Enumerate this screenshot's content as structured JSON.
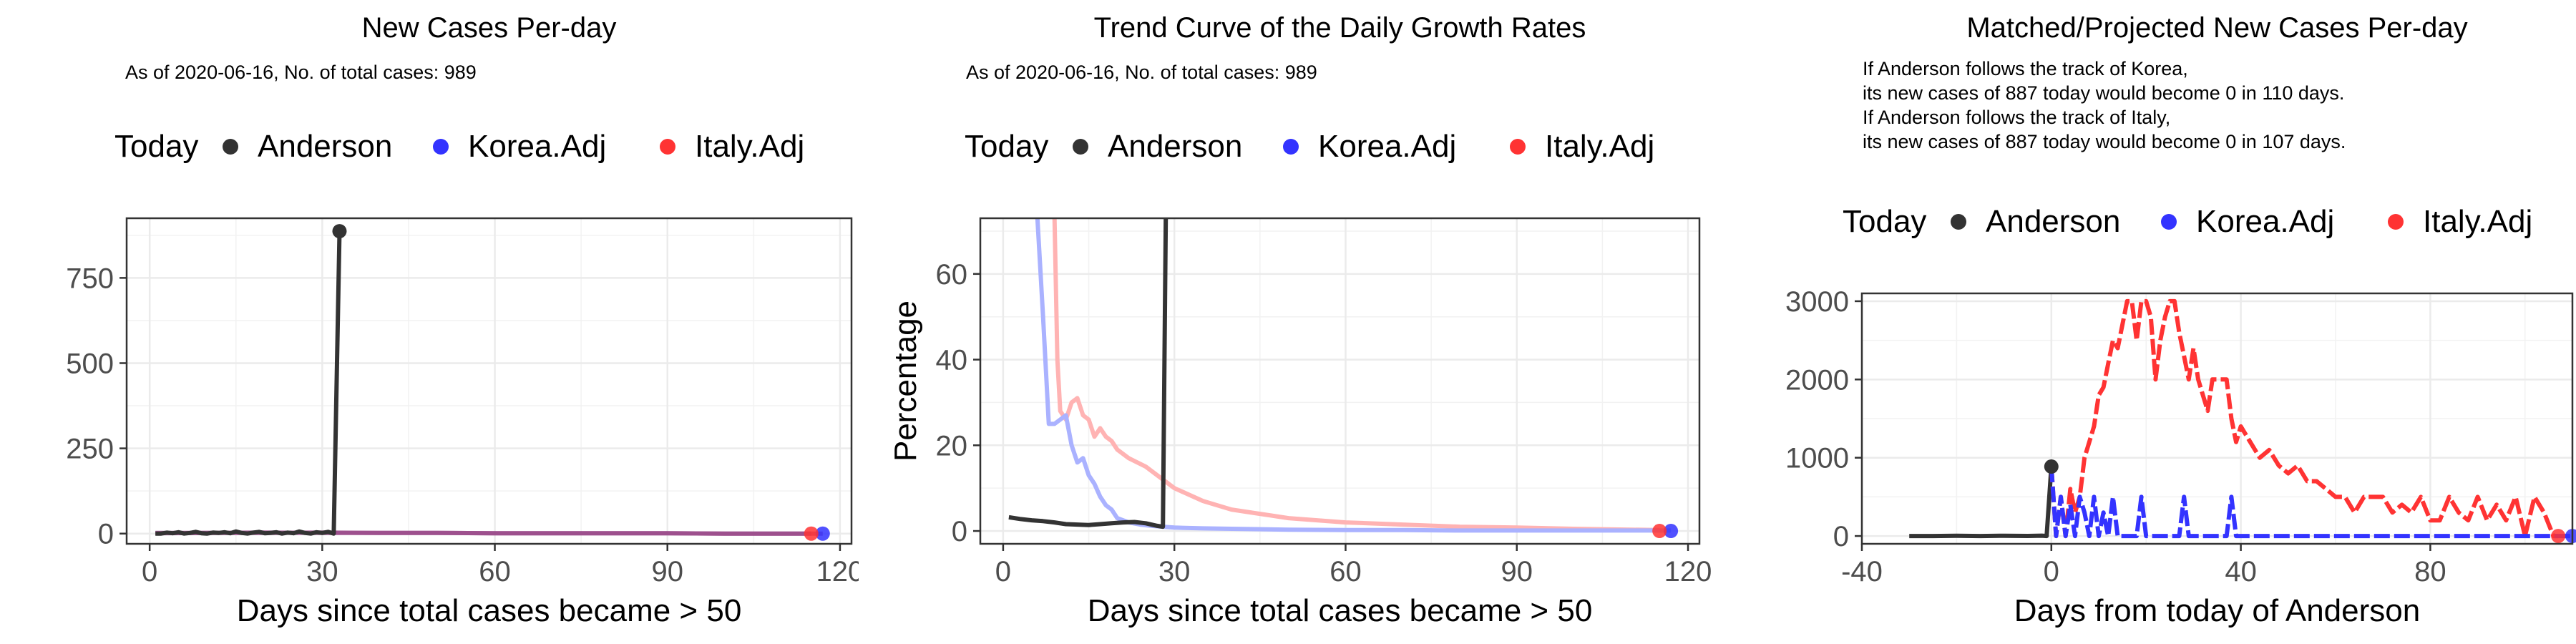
{
  "colors": {
    "anderson": "#333333",
    "korea": "#3333ff",
    "italy": "#ff3333",
    "korea_light": "#aab2ff",
    "italy_light": "#ffb3b3",
    "grid": "#ebebeb",
    "axis": "#333333"
  },
  "legend": {
    "today": "Today",
    "items": [
      "Anderson",
      "Korea.Adj",
      "Italy.Adj"
    ]
  },
  "chart_data": [
    {
      "type": "line",
      "title": "New Cases Per-day",
      "subtitle": "As of 2020-06-16, No. of total cases: 989",
      "xlabel": "Days since total cases became > 50",
      "ylabel": "",
      "xlim": [
        -4,
        122
      ],
      "ylim": [
        -30,
        925
      ],
      "xticks": [
        0,
        30,
        60,
        90,
        120
      ],
      "yticks": [
        0,
        250,
        500,
        750
      ],
      "grid": true,
      "legend_position": "top",
      "series": [
        {
          "name": "Anderson",
          "x": [
            1,
            2,
            3,
            4,
            5,
            6,
            7,
            8,
            9,
            10,
            11,
            12,
            13,
            14,
            15,
            16,
            17,
            18,
            19,
            20,
            21,
            22,
            23,
            24,
            25,
            26,
            27,
            28,
            29,
            30,
            31,
            32,
            33
          ],
          "values": [
            0,
            0,
            3,
            1,
            4,
            0,
            2,
            5,
            1,
            0,
            3,
            2,
            4,
            1,
            6,
            2,
            0,
            3,
            5,
            1,
            2,
            4,
            0,
            3,
            1,
            6,
            2,
            0,
            4,
            2,
            5,
            0,
            887
          ]
        },
        {
          "name": "Korea.Adj",
          "x": [
            1,
            10,
            20,
            30,
            40,
            50,
            60,
            70,
            80,
            90,
            100,
            110,
            117
          ],
          "values": [
            2,
            2,
            3,
            2,
            2,
            2,
            1,
            1,
            1,
            1,
            0,
            0,
            0
          ]
        },
        {
          "name": "Italy.Adj",
          "x": [
            1,
            10,
            20,
            30,
            40,
            50,
            60,
            70,
            80,
            90,
            100,
            110,
            115
          ],
          "values": [
            1,
            2,
            2,
            3,
            2,
            2,
            1,
            1,
            1,
            1,
            0,
            0,
            0
          ]
        }
      ],
      "today_points": [
        {
          "name": "Anderson",
          "x": 33,
          "y": 887
        },
        {
          "name": "Korea.Adj",
          "x": 117,
          "y": 0
        },
        {
          "name": "Italy.Adj",
          "x": 115,
          "y": 0
        }
      ]
    },
    {
      "type": "line",
      "title": "Trend Curve of the Daily Growth Rates",
      "subtitle": "As of 2020-06-16, No. of total cases: 989",
      "xlabel": "Days since total cases became > 50",
      "ylabel": "Percentage",
      "xlim": [
        -4,
        122
      ],
      "ylim": [
        -3,
        73
      ],
      "xticks": [
        0,
        30,
        60,
        90,
        120
      ],
      "yticks": [
        0,
        20,
        40,
        60
      ],
      "grid": true,
      "legend_position": "top",
      "series": [
        {
          "name": "Anderson",
          "x": [
            1,
            3,
            5,
            7,
            9,
            11,
            13,
            15,
            17,
            19,
            21,
            23,
            25,
            27,
            28,
            28.5
          ],
          "values": [
            3.2,
            2.8,
            2.5,
            2.3,
            2.0,
            1.6,
            1.5,
            1.4,
            1.6,
            1.8,
            2.0,
            2.1,
            1.8,
            1.2,
            1.0,
            73
          ]
        },
        {
          "name": "Korea.Adj",
          "x": [
            6,
            7,
            8,
            9,
            10,
            11,
            12,
            13,
            14,
            15,
            16,
            17,
            18,
            19,
            20,
            22,
            24,
            26,
            28,
            30,
            35,
            40,
            50,
            60,
            70,
            80,
            90,
            100,
            110,
            117
          ],
          "values": [
            73,
            50,
            25,
            25,
            26,
            27,
            20,
            16,
            17,
            13,
            11,
            8,
            6,
            5,
            3,
            2,
            1.5,
            1.2,
            1.0,
            0.8,
            0.6,
            0.5,
            0.3,
            0.2,
            0.2,
            0.1,
            0.1,
            0.1,
            0.1,
            0.1
          ]
        },
        {
          "name": "Italy.Adj",
          "x": [
            9,
            9.5,
            10,
            11,
            12,
            13,
            14,
            15,
            16,
            17,
            18,
            19,
            20,
            22,
            25,
            28,
            30,
            35,
            40,
            45,
            50,
            60,
            70,
            80,
            90,
            100,
            110,
            115
          ],
          "values": [
            73,
            40,
            28,
            26,
            30,
            31,
            27,
            26,
            22,
            24,
            22,
            21,
            19,
            17,
            15,
            12,
            10,
            7,
            5,
            4,
            3,
            2,
            1.5,
            1.0,
            0.8,
            0.5,
            0.3,
            0.2
          ]
        }
      ],
      "today_points": [
        {
          "name": "Korea.Adj",
          "x": 117,
          "y": 0
        },
        {
          "name": "Italy.Adj",
          "x": 115,
          "y": 0
        }
      ]
    },
    {
      "type": "line",
      "title": "Matched/Projected New Cases Per-day",
      "annotation_lines": [
        "If Anderson follows the track of Korea,",
        "its new cases of 887 today would become 0 in 110 days.",
        "If Anderson follows the track of Italy,",
        "its new cases of 887 today would become 0 in 107 days."
      ],
      "xlabel": "Days from today of Anderson",
      "ylabel": "",
      "xlim": [
        -40,
        110
      ],
      "ylim": [
        -100,
        3100
      ],
      "xticks": [
        -40,
        0,
        40,
        80
      ],
      "yticks": [
        0,
        1000,
        2000,
        3000
      ],
      "grid": true,
      "legend_position": "top",
      "series": [
        {
          "name": "Anderson",
          "x": [
            -30,
            -25,
            -20,
            -15,
            -10,
            -5,
            -2,
            -1,
            0
          ],
          "values": [
            0,
            0,
            2,
            0,
            3,
            1,
            4,
            0,
            887
          ]
        },
        {
          "name": "Korea.Adj",
          "x": [
            0,
            1,
            2,
            3,
            4,
            5,
            6,
            7,
            8,
            9,
            10,
            11,
            12,
            13,
            14,
            15,
            16,
            17,
            18,
            19,
            20,
            22,
            24,
            26,
            27,
            28,
            29,
            30,
            32,
            34,
            36,
            37,
            38,
            39,
            40,
            45,
            50,
            55,
            60,
            65,
            70,
            75,
            80,
            85,
            90,
            95,
            100,
            105,
            110
          ],
          "values": [
            887,
            0,
            500,
            0,
            400,
            0,
            500,
            300,
            0,
            500,
            0,
            300,
            0,
            500,
            0,
            0,
            0,
            0,
            0,
            500,
            0,
            0,
            0,
            0,
            0,
            500,
            0,
            0,
            0,
            0,
            0,
            0,
            500,
            0,
            0,
            0,
            0,
            0,
            0,
            0,
            0,
            0,
            0,
            0,
            0,
            0,
            0,
            0,
            0
          ]
        },
        {
          "name": "Italy.Adj",
          "x": [
            0,
            1,
            2,
            3,
            4,
            5,
            6,
            7,
            8,
            9,
            10,
            11,
            12,
            13,
            14,
            15,
            16,
            17,
            18,
            19,
            20,
            21,
            22,
            23,
            24,
            25,
            26,
            27,
            28,
            29,
            30,
            31,
            32,
            33,
            34,
            35,
            36,
            37,
            38,
            39,
            40,
            42,
            44,
            46,
            48,
            50,
            52,
            54,
            56,
            58,
            60,
            62,
            64,
            66,
            68,
            70,
            72,
            74,
            76,
            78,
            80,
            82,
            84,
            86,
            88,
            90,
            92,
            94,
            96,
            98,
            100,
            102,
            104,
            106,
            107
          ],
          "values": [
            887,
            0,
            500,
            0,
            600,
            300,
            500,
            1000,
            1200,
            1400,
            1800,
            1900,
            2200,
            2500,
            2400,
            2700,
            3000,
            3000,
            2500,
            3000,
            3000,
            2800,
            2000,
            2500,
            2800,
            3000,
            3000,
            2600,
            2300,
            2000,
            2400,
            2000,
            1800,
            1600,
            2000,
            2000,
            2000,
            2000,
            1500,
            1200,
            1400,
            1200,
            1000,
            1100,
            900,
            800,
            900,
            700,
            700,
            600,
            500,
            500,
            300,
            500,
            500,
            500,
            300,
            400,
            300,
            500,
            200,
            200,
            500,
            300,
            200,
            500,
            200,
            400,
            200,
            500,
            0,
            500,
            300,
            0,
            0
          ]
        }
      ],
      "today_points": [
        {
          "name": "Anderson",
          "x": 0,
          "y": 887
        },
        {
          "name": "Korea.Adj",
          "x": 110,
          "y": 0
        },
        {
          "name": "Italy.Adj",
          "x": 107,
          "y": 0
        }
      ]
    }
  ]
}
